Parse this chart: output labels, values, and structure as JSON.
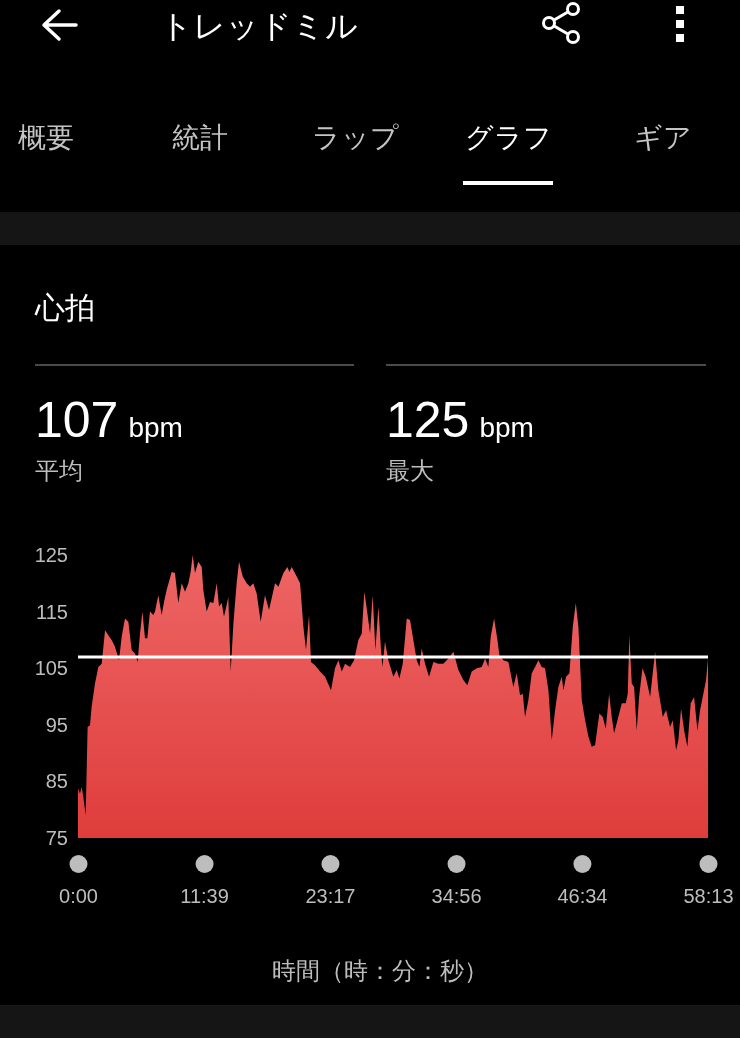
{
  "chart_data": {
    "type": "area",
    "title": "心拍",
    "xlabel": "時間（時：分：秒）",
    "annotations": [
      "トレッドミル",
      "概要",
      "統計",
      "ラップ",
      "グラフ",
      "ギア",
      "107 bpm",
      "平均",
      "125 bpm",
      "最大"
    ],
    "color": "#e8403f",
    "xlim": [
      0,
      58.2167
    ],
    "xticks": [
      {
        "value": 0,
        "label": "0:00"
      },
      {
        "value": 11.65,
        "label": "11:39"
      },
      {
        "value": 23.2833,
        "label": "23:17"
      },
      {
        "value": 34.9333,
        "label": "34:56"
      },
      {
        "value": 46.5667,
        "label": "46:34"
      },
      {
        "value": 58.2167,
        "label": "58:13"
      }
    ],
    "ylim": [
      75,
      125
    ],
    "yticks": [
      75,
      85,
      95,
      105,
      115,
      125
    ],
    "ref_lines": [
      {
        "axis": "y",
        "value": 107,
        "color": "#ffffff"
      }
    ],
    "x": [
      0,
      0.18,
      0.34,
      0.49,
      0.71,
      0.89,
      1.11,
      1.26,
      1.57,
      1.88,
      2.19,
      2.5,
      2.8,
      3.11,
      3.42,
      3.79,
      4.04,
      4.34,
      4.65,
      4.96,
      5.27,
      5.51,
      5.73,
      5.95,
      6.19,
      6.41,
      6.65,
      6.96,
      7.12,
      7.42,
      7.73,
      7.95,
      8.19,
      8.66,
      8.96,
      9.27,
      9.58,
      9.89,
      10.2,
      10.41,
      10.6,
      10.81,
      11.12,
      11.43,
      11.58,
      11.89,
      12.2,
      12.51,
      12.82,
      13.03,
      13.28,
      13.49,
      13.74,
      13.89,
      14.11,
      14.36,
      14.66,
      14.88,
      15.22,
      15.59,
      15.9,
      16.2,
      16.51,
      16.88,
      17.28,
      17.65,
      18.21,
      18.52,
      18.98,
      19.35,
      19.53,
      19.75,
      20.21,
      20.52,
      20.83,
      21.07,
      21.35,
      21.53,
      21.9,
      22.37,
      22.83,
      23.38,
      23.75,
      24.06,
      24.37,
      24.68,
      25.14,
      25.51,
      25.91,
      26.22,
      26.46,
      26.74,
      26.99,
      27.23,
      27.48,
      27.76,
      28,
      28.13,
      28.37,
      28.68,
      29.14,
      29.45,
      29.7,
      30.01,
      30.38,
      30.68,
      30.99,
      31.3,
      31.55,
      31.76,
      32.07,
      32.44,
      32.84,
      33.3,
      33.76,
      34.23,
      34.69,
      35.15,
      35.61,
      35.98,
      36.38,
      36.85,
      37.31,
      37.62,
      37.92,
      38.14,
      38.45,
      38.76,
      38.94,
      39.31,
      39.77,
      40.23,
      40.54,
      40.85,
      41.1,
      41.31,
      41.62,
      41.93,
      42.24,
      42.54,
      42.85,
      43.16,
      43.47,
      43.78,
      44.09,
      44.39,
      44.7,
      44.86,
      45.1,
      45.41,
      45.72,
      46,
      46.24,
      46.55,
      46.86,
      47.17,
      47.47,
      47.78,
      48.18,
      48.49,
      48.77,
      49.08,
      49.32,
      49.54,
      49.85,
      50.25,
      50.62,
      50.8,
      50.95,
      51.17,
      51.39,
      51.63,
      51.85,
      52.16,
      52.46,
      52.87,
      53.11,
      53.33,
      53.63,
      54.04,
      54.34,
      54.71,
      54.96,
      55.27,
      55.48,
      55.73,
      56.01,
      56.31,
      56.62,
      56.93,
      57.24,
      57.49,
      57.79,
      58.04,
      58.2167
    ],
    "values": [
      83.8,
      82.8,
      84,
      82.3,
      79,
      94.6,
      94.9,
      98.2,
      102.3,
      105.2,
      105.8,
      111.7,
      110.8,
      110,
      108.8,
      106.4,
      110.6,
      113.8,
      113.2,
      108.2,
      107.6,
      106.1,
      111.1,
      115,
      110.3,
      110.3,
      115,
      114.4,
      115,
      117.9,
      114.4,
      116.7,
      118.8,
      122,
      121.8,
      116.5,
      120,
      118.5,
      120,
      122,
      125,
      121.8,
      123.8,
      122.9,
      118.8,
      115,
      116.7,
      116.5,
      120,
      115.9,
      116.5,
      114.1,
      116.2,
      117.6,
      104.4,
      112.9,
      120,
      123.8,
      121.2,
      120,
      119.4,
      120,
      118.2,
      113.2,
      117.9,
      115.3,
      120,
      119.4,
      121.8,
      122.9,
      122,
      122.9,
      121.2,
      120,
      112.3,
      108.2,
      114.4,
      106.1,
      105.5,
      104.4,
      103.5,
      101.1,
      105,
      106.4,
      104.4,
      105.8,
      105.2,
      106.4,
      110,
      111.1,
      118.5,
      114.7,
      111.1,
      117.9,
      108.2,
      115.9,
      108.2,
      105.2,
      109.7,
      106.4,
      103.5,
      104.7,
      103.2,
      105.8,
      113.8,
      113.5,
      110,
      106.4,
      105.2,
      108.5,
      105.8,
      103.5,
      106.1,
      105.8,
      105.8,
      106.7,
      107.9,
      104.7,
      102.9,
      102,
      104.4,
      105,
      105.2,
      106.7,
      105.2,
      110.6,
      113.8,
      110,
      107.3,
      106.4,
      106.1,
      101.7,
      104.1,
      100.2,
      100.5,
      96.4,
      99.4,
      104.1,
      105.2,
      106.4,
      105.2,
      105,
      101.1,
      92.3,
      97.6,
      101.7,
      103.5,
      101.1,
      103.5,
      104.1,
      112.3,
      116.5,
      112.3,
      99.4,
      95.8,
      92.9,
      91.1,
      91.4,
      97,
      96.4,
      94.3,
      100.5,
      96.4,
      93.5,
      95.8,
      98.8,
      98.8,
      100.5,
      110.8,
      102.3,
      101.7,
      94,
      99.9,
      105,
      103.5,
      99.9,
      104.1,
      107.9,
      101.1,
      96.4,
      97.6,
      94.6,
      95.8,
      90.5,
      92.3,
      97.9,
      94,
      91.1,
      98.8,
      99.9,
      94,
      97.6,
      100.5,
      102.9,
      106.7
    ]
  }
}
